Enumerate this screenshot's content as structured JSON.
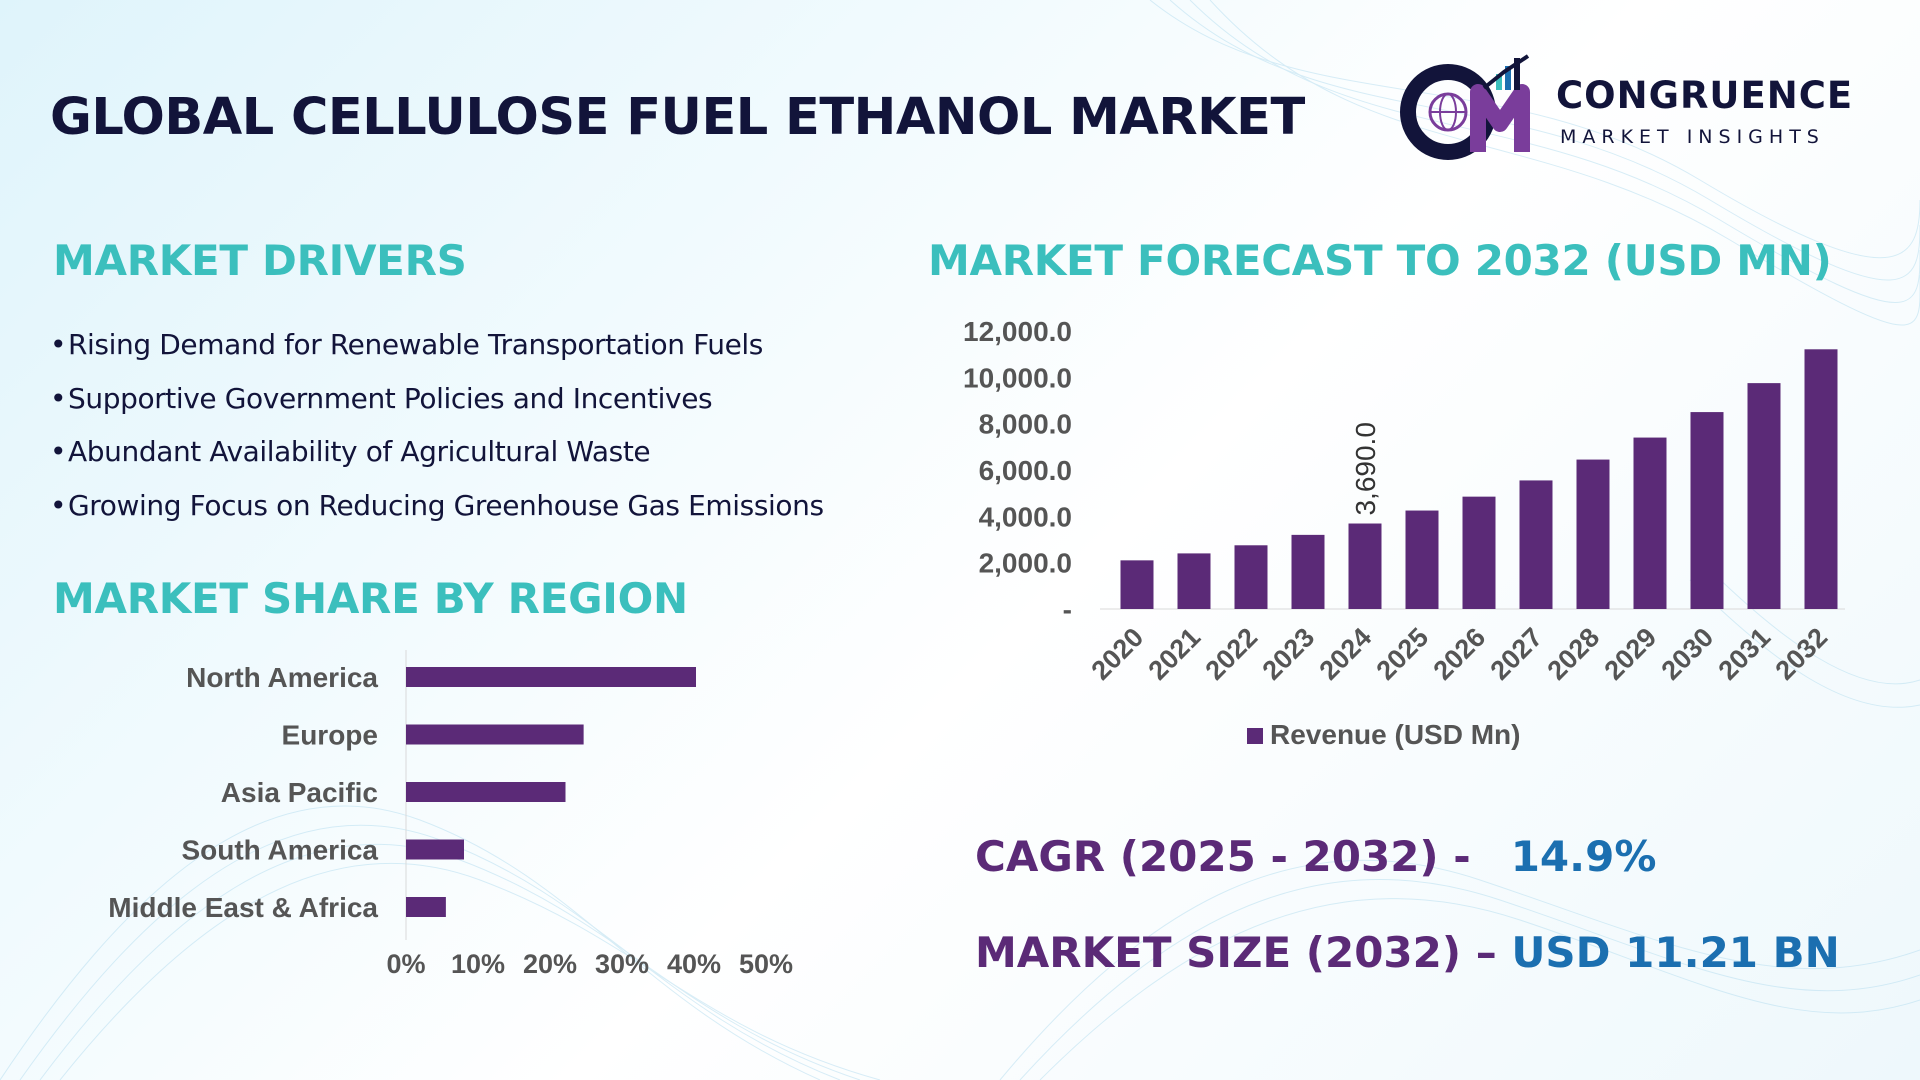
{
  "title": "GLOBAL CELLULOSE FUEL ETHANOL MARKET",
  "logo": {
    "name": "CONGRUENCE",
    "tagline": "MARKET INSIGHTS",
    "letters": "CM",
    "icon": "globe-chart-icon"
  },
  "colors": {
    "bar": "#5b2a77",
    "heading": "#3bbfbd",
    "title": "#12143a",
    "kpi_value": "#1b6fb0",
    "axis_text": "#555555"
  },
  "drivers": {
    "heading": "MARKET DRIVERS",
    "items": [
      "Rising Demand for Renewable Transportation Fuels",
      "Supportive Government Policies and Incentives",
      "Abundant Availability of Agricultural Waste",
      "Growing Focus on Reducing Greenhouse Gas Emissions"
    ]
  },
  "region": {
    "heading": "MARKET SHARE BY REGION"
  },
  "forecast": {
    "heading": "MARKET FORECAST TO 2032 (USD MN)"
  },
  "kpis": {
    "cagr_label": "CAGR (2025 - 2032) -",
    "cagr_value": "14.9%",
    "size_label": "MARKET SIZE (2032) –",
    "size_value": "USD 11.21 BN"
  },
  "chart_data": [
    {
      "type": "bar",
      "orientation": "horizontal",
      "categories": [
        "North America",
        "Europe",
        "Asia Pacific",
        "South America",
        "Middle East & Africa"
      ],
      "values": [
        40,
        24.5,
        22,
        8,
        5.5
      ],
      "xlim": [
        0,
        50
      ],
      "x_ticks": [
        "0%",
        "10%",
        "20%",
        "30%",
        "40%",
        "50%"
      ],
      "grid": false,
      "legend": "none"
    },
    {
      "type": "bar",
      "categories": [
        "2020",
        "2021",
        "2022",
        "2023",
        "2024",
        "2025",
        "2026",
        "2027",
        "2028",
        "2029",
        "2030",
        "2031",
        "2032"
      ],
      "series": [
        {
          "name": "Revenue (USD Mn)",
          "values": [
            2100,
            2400,
            2750,
            3200,
            3690,
            4250,
            4850,
            5550,
            6450,
            7400,
            8500,
            9750,
            11210
          ]
        }
      ],
      "ylim": [
        0,
        12000
      ],
      "y_ticks": [
        "-",
        "2,000.0",
        "4,000.0",
        "6,000.0",
        "8,000.0",
        "10,000.0",
        "12,000.0"
      ],
      "data_labels": [
        {
          "category": "2024",
          "text": "3,690.0"
        }
      ],
      "legend": "bottom",
      "grid": false
    }
  ]
}
